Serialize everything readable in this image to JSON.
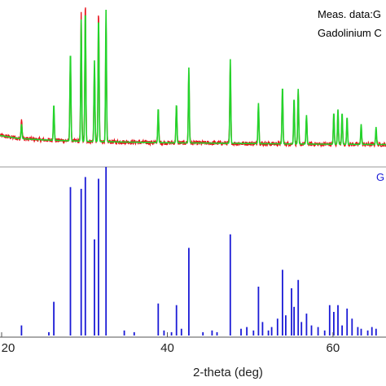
{
  "chart_data": {
    "type": "line",
    "xlabel": "2-theta (deg)",
    "xlim": [
      19.8,
      66.4
    ],
    "x_ticks": [
      {
        "value": 20,
        "label": "20"
      },
      {
        "value": 40,
        "label": "40"
      },
      {
        "value": 60,
        "label": "60"
      }
    ],
    "grid": false,
    "legend_position": "top-right",
    "legend": {
      "meas_label": "Meas. data:G",
      "calc_label": "Gadolinium C",
      "peak_label": "G"
    },
    "colors": {
      "measured": "#e8121b",
      "calculated": "#22d42a",
      "reference": "#1a1ad6",
      "axis": "#555555",
      "divider": "#999999"
    },
    "pattern_ylim": [
      0,
      1.0
    ],
    "background": [
      [
        19.8,
        0.11
      ],
      [
        22,
        0.09
      ],
      [
        25,
        0.08
      ],
      [
        30,
        0.07
      ],
      [
        35,
        0.065
      ],
      [
        40,
        0.06
      ],
      [
        45,
        0.058
      ],
      [
        50,
        0.055
      ],
      [
        55,
        0.052
      ],
      [
        60,
        0.05
      ],
      [
        66.4,
        0.048
      ]
    ],
    "series": [
      {
        "name": "Meas. data:G",
        "peaks": [
          {
            "x": 22.4,
            "y": 0.14
          },
          {
            "x": 26.3,
            "y": 0.22
          },
          {
            "x": 28.3,
            "y": 0.58
          },
          {
            "x": 29.6,
            "y": 0.88
          },
          {
            "x": 30.1,
            "y": 0.96
          },
          {
            "x": 31.2,
            "y": 0.52
          },
          {
            "x": 31.7,
            "y": 0.9
          },
          {
            "x": 32.6,
            "y": 0.84
          },
          {
            "x": 38.9,
            "y": 0.22
          },
          {
            "x": 41.1,
            "y": 0.25
          },
          {
            "x": 42.6,
            "y": 0.49
          },
          {
            "x": 47.6,
            "y": 0.55
          },
          {
            "x": 51.0,
            "y": 0.25
          },
          {
            "x": 53.9,
            "y": 0.37
          },
          {
            "x": 55.3,
            "y": 0.3
          },
          {
            "x": 55.8,
            "y": 0.36
          },
          {
            "x": 56.8,
            "y": 0.18
          },
          {
            "x": 60.1,
            "y": 0.2
          },
          {
            "x": 60.6,
            "y": 0.22
          },
          {
            "x": 61.1,
            "y": 0.2
          },
          {
            "x": 61.7,
            "y": 0.17
          },
          {
            "x": 63.4,
            "y": 0.12
          },
          {
            "x": 65.2,
            "y": 0.1
          }
        ]
      },
      {
        "name": "Gadolinium C",
        "peaks": [
          {
            "x": 22.4,
            "y": 0.1
          },
          {
            "x": 26.3,
            "y": 0.25
          },
          {
            "x": 28.3,
            "y": 0.62
          },
          {
            "x": 29.6,
            "y": 0.84
          },
          {
            "x": 30.1,
            "y": 0.92
          },
          {
            "x": 31.2,
            "y": 0.56
          },
          {
            "x": 31.7,
            "y": 0.87
          },
          {
            "x": 32.6,
            "y": 0.91
          },
          {
            "x": 38.9,
            "y": 0.24
          },
          {
            "x": 41.1,
            "y": 0.27
          },
          {
            "x": 42.6,
            "y": 0.52
          },
          {
            "x": 47.6,
            "y": 0.58
          },
          {
            "x": 51.0,
            "y": 0.28
          },
          {
            "x": 53.9,
            "y": 0.4
          },
          {
            "x": 55.3,
            "y": 0.32
          },
          {
            "x": 55.8,
            "y": 0.38
          },
          {
            "x": 56.8,
            "y": 0.2
          },
          {
            "x": 60.1,
            "y": 0.22
          },
          {
            "x": 60.6,
            "y": 0.24
          },
          {
            "x": 61.1,
            "y": 0.22
          },
          {
            "x": 61.7,
            "y": 0.19
          },
          {
            "x": 63.4,
            "y": 0.14
          },
          {
            "x": 65.2,
            "y": 0.12
          }
        ]
      }
    ],
    "reference_ylim": [
      0,
      1.0
    ],
    "reference_lines": [
      {
        "x": 22.4,
        "y": 0.06
      },
      {
        "x": 25.7,
        "y": 0.02
      },
      {
        "x": 26.3,
        "y": 0.2
      },
      {
        "x": 28.3,
        "y": 0.88
      },
      {
        "x": 29.6,
        "y": 0.87
      },
      {
        "x": 30.1,
        "y": 0.94
      },
      {
        "x": 31.2,
        "y": 0.57
      },
      {
        "x": 31.7,
        "y": 0.93
      },
      {
        "x": 32.6,
        "y": 1.0
      },
      {
        "x": 34.8,
        "y": 0.03
      },
      {
        "x": 36.0,
        "y": 0.02
      },
      {
        "x": 38.9,
        "y": 0.19
      },
      {
        "x": 39.6,
        "y": 0.03
      },
      {
        "x": 40.5,
        "y": 0.02
      },
      {
        "x": 41.1,
        "y": 0.18
      },
      {
        "x": 41.7,
        "y": 0.04
      },
      {
        "x": 42.6,
        "y": 0.52
      },
      {
        "x": 44.3,
        "y": 0.02
      },
      {
        "x": 45.4,
        "y": 0.03
      },
      {
        "x": 46.0,
        "y": 0.02
      },
      {
        "x": 47.6,
        "y": 0.6
      },
      {
        "x": 48.9,
        "y": 0.04
      },
      {
        "x": 49.6,
        "y": 0.05
      },
      {
        "x": 50.4,
        "y": 0.03
      },
      {
        "x": 51.0,
        "y": 0.29
      },
      {
        "x": 51.5,
        "y": 0.08
      },
      {
        "x": 52.2,
        "y": 0.03
      },
      {
        "x": 52.6,
        "y": 0.05
      },
      {
        "x": 53.3,
        "y": 0.1
      },
      {
        "x": 53.9,
        "y": 0.39
      },
      {
        "x": 54.3,
        "y": 0.12
      },
      {
        "x": 55.0,
        "y": 0.28
      },
      {
        "x": 55.3,
        "y": 0.17
      },
      {
        "x": 55.8,
        "y": 0.33
      },
      {
        "x": 56.2,
        "y": 0.08
      },
      {
        "x": 56.8,
        "y": 0.13
      },
      {
        "x": 57.4,
        "y": 0.06
      },
      {
        "x": 58.2,
        "y": 0.05
      },
      {
        "x": 59.0,
        "y": 0.03
      },
      {
        "x": 59.6,
        "y": 0.18
      },
      {
        "x": 60.1,
        "y": 0.14
      },
      {
        "x": 60.6,
        "y": 0.18
      },
      {
        "x": 61.1,
        "y": 0.06
      },
      {
        "x": 61.7,
        "y": 0.16
      },
      {
        "x": 62.3,
        "y": 0.1
      },
      {
        "x": 63.0,
        "y": 0.05
      },
      {
        "x": 63.4,
        "y": 0.04
      },
      {
        "x": 64.2,
        "y": 0.03
      },
      {
        "x": 64.7,
        "y": 0.05
      },
      {
        "x": 65.2,
        "y": 0.04
      }
    ]
  }
}
